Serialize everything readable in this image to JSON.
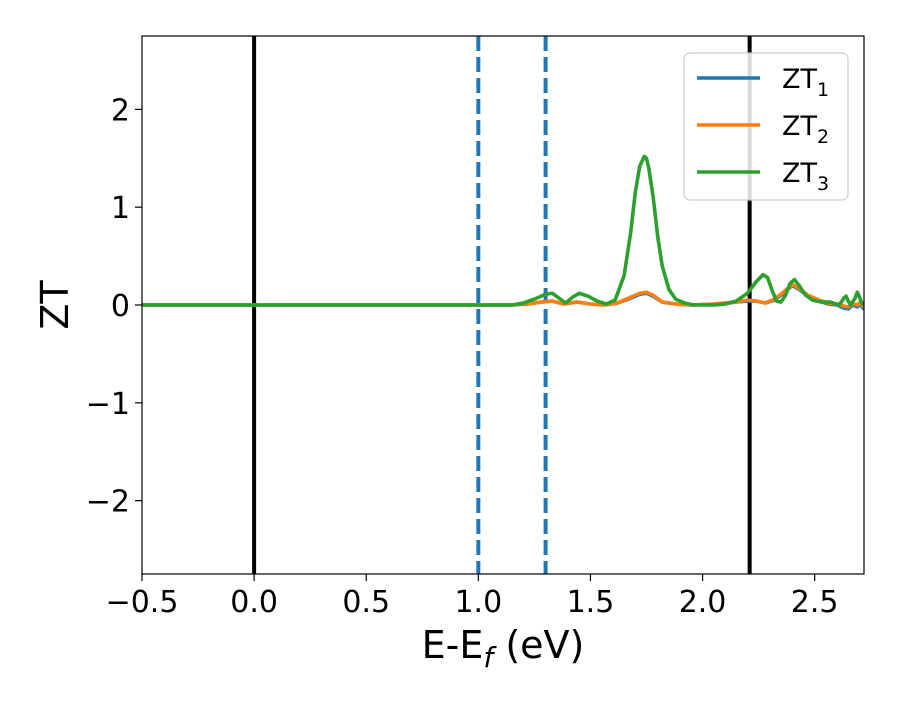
{
  "chart_data": {
    "type": "line",
    "xlabel_main": "E-E",
    "xlabel_sub": "f",
    "xlabel_tail": " (eV)",
    "ylabel": "ZT",
    "xlim": [
      -0.5,
      2.72
    ],
    "ylim": [
      -2.75,
      2.75
    ],
    "xticks": [
      {
        "value": -0.5,
        "label": "−0.5"
      },
      {
        "value": 0.0,
        "label": "0.0"
      },
      {
        "value": 0.5,
        "label": "0.5"
      },
      {
        "value": 1.0,
        "label": "1.0"
      },
      {
        "value": 1.5,
        "label": "1.5"
      },
      {
        "value": 2.0,
        "label": "2.0"
      },
      {
        "value": 2.5,
        "label": "2.5"
      }
    ],
    "yticks": [
      {
        "value": -2,
        "label": "−2"
      },
      {
        "value": -1,
        "label": "−1"
      },
      {
        "value": 0,
        "label": "0"
      },
      {
        "value": 1,
        "label": "1"
      },
      {
        "value": 2,
        "label": "2"
      }
    ],
    "vlines": [
      {
        "x": 0.0,
        "color": "#000000",
        "style": "solid"
      },
      {
        "x": 2.21,
        "color": "#000000",
        "style": "solid"
      },
      {
        "x": 1.0,
        "color": "#1f77b4",
        "style": "dashed"
      },
      {
        "x": 1.3,
        "color": "#1f77b4",
        "style": "dashed"
      }
    ],
    "legend_position": "top-right",
    "series": [
      {
        "name": "ZT",
        "sub": "1",
        "color": "#1f77b4",
        "x": [
          -0.5,
          1.0,
          1.15,
          1.22,
          1.28,
          1.33,
          1.38,
          1.44,
          1.5,
          1.56,
          1.62,
          1.68,
          1.72,
          1.75,
          1.78,
          1.82,
          1.88,
          1.95,
          2.05,
          2.15,
          2.2,
          2.24,
          2.28,
          2.32,
          2.36,
          2.4,
          2.43,
          2.47,
          2.52,
          2.56,
          2.6,
          2.63,
          2.65,
          2.67,
          2.69,
          2.7,
          2.72
        ],
        "y": [
          0,
          0,
          0,
          0.01,
          0.03,
          0.04,
          0.01,
          0.03,
          0.01,
          0.0,
          0.02,
          0.07,
          0.11,
          0.12,
          0.09,
          0.03,
          0.01,
          0.0,
          0.01,
          0.03,
          0.04,
          0.04,
          0.02,
          0.05,
          0.12,
          0.2,
          0.16,
          0.09,
          0.04,
          0.01,
          0.0,
          -0.03,
          -0.04,
          0.0,
          -0.02,
          0.01,
          -0.04
        ]
      },
      {
        "name": "ZT",
        "sub": "2",
        "color": "#ff7f0e",
        "x": [
          -0.5,
          1.0,
          1.15,
          1.22,
          1.28,
          1.33,
          1.38,
          1.44,
          1.5,
          1.56,
          1.62,
          1.68,
          1.72,
          1.75,
          1.78,
          1.82,
          1.88,
          1.95,
          2.05,
          2.15,
          2.2,
          2.24,
          2.28,
          2.32,
          2.36,
          2.4,
          2.43,
          2.47,
          2.52,
          2.56,
          2.6,
          2.63,
          2.65,
          2.67,
          2.69,
          2.7,
          2.72
        ],
        "y": [
          0,
          0,
          0,
          0.01,
          0.03,
          0.04,
          0.01,
          0.03,
          0.01,
          0.0,
          0.02,
          0.08,
          0.12,
          0.13,
          0.1,
          0.03,
          0.01,
          0.0,
          0.01,
          0.03,
          0.05,
          0.04,
          0.02,
          0.06,
          0.13,
          0.21,
          0.17,
          0.1,
          0.05,
          0.02,
          0.01,
          -0.01,
          -0.02,
          0.01,
          0.0,
          0.02,
          -0.02
        ]
      },
      {
        "name": "ZT",
        "sub": "3",
        "color": "#2ca02c",
        "x": [
          -0.5,
          1.0,
          1.15,
          1.2,
          1.25,
          1.3,
          1.33,
          1.36,
          1.39,
          1.42,
          1.45,
          1.49,
          1.53,
          1.57,
          1.61,
          1.65,
          1.68,
          1.7,
          1.72,
          1.74,
          1.75,
          1.76,
          1.78,
          1.8,
          1.82,
          1.85,
          1.88,
          1.92,
          1.96,
          2.0,
          2.05,
          2.1,
          2.15,
          2.2,
          2.24,
          2.27,
          2.29,
          2.31,
          2.33,
          2.35,
          2.37,
          2.39,
          2.41,
          2.43,
          2.46,
          2.49,
          2.53,
          2.57,
          2.61,
          2.63,
          2.64,
          2.65,
          2.66,
          2.68,
          2.69,
          2.7,
          2.71,
          2.72
        ],
        "y": [
          0,
          0,
          0.0,
          0.02,
          0.06,
          0.11,
          0.12,
          0.07,
          0.02,
          0.08,
          0.12,
          0.09,
          0.04,
          0.01,
          0.05,
          0.3,
          0.75,
          1.15,
          1.42,
          1.52,
          1.5,
          1.4,
          1.1,
          0.7,
          0.4,
          0.16,
          0.06,
          0.02,
          0.0,
          0.0,
          0.0,
          0.01,
          0.04,
          0.12,
          0.24,
          0.31,
          0.28,
          0.15,
          0.04,
          0.03,
          0.1,
          0.22,
          0.26,
          0.2,
          0.1,
          0.05,
          0.03,
          0.03,
          0.0,
          0.07,
          0.09,
          0.04,
          0.0,
          0.07,
          0.13,
          0.08,
          0.02,
          0.0
        ]
      }
    ]
  }
}
